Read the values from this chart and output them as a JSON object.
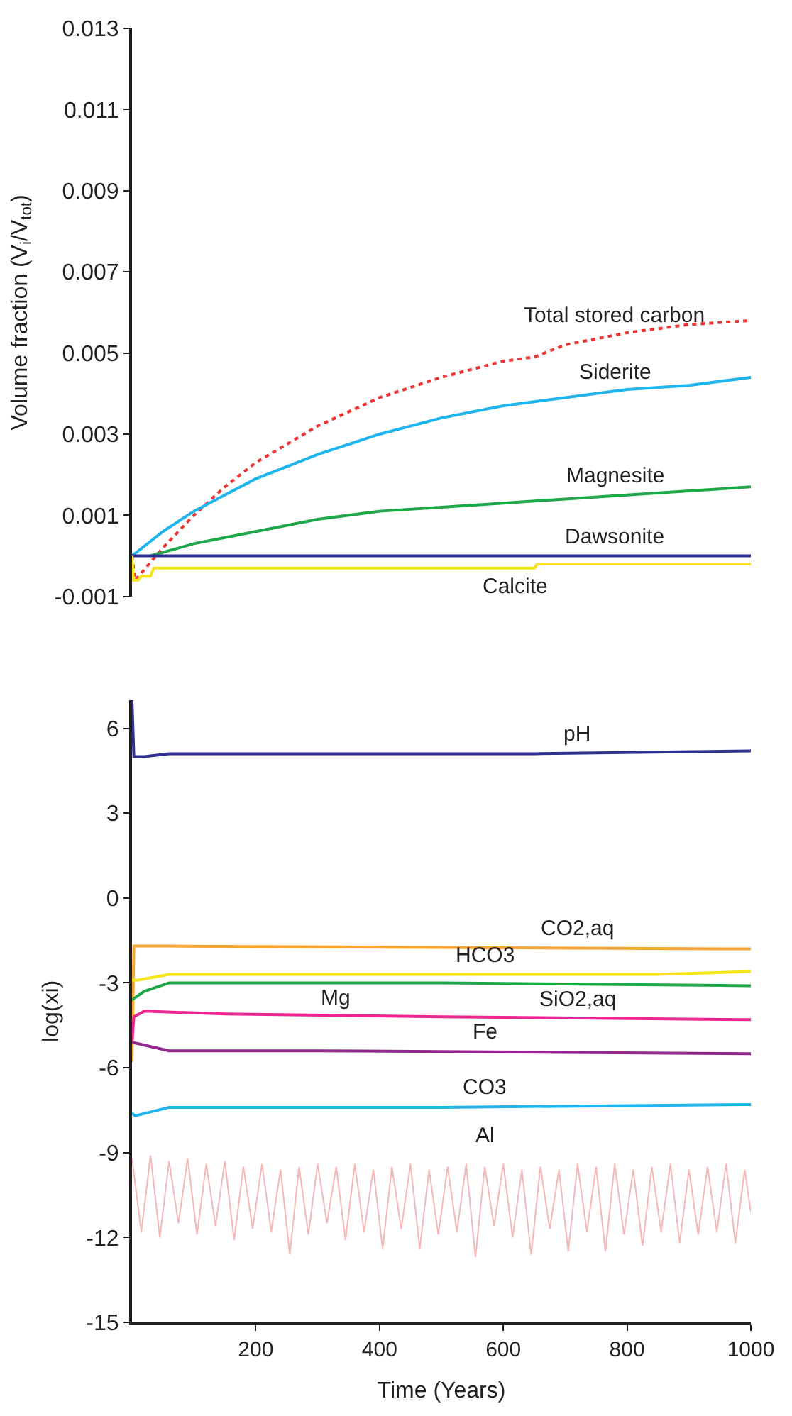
{
  "chart_data": [
    {
      "type": "line",
      "ylabel": "Volume fraction (V$_{i}$/V$_{tot}$)",
      "xlim": [
        0,
        1000
      ],
      "ylim": [
        -0.001,
        0.013
      ],
      "yticks": [
        -0.001,
        0.001,
        0.003,
        0.005,
        0.007,
        0.009,
        0.011,
        0.013
      ],
      "tick_labels": "y",
      "series": [
        {
          "name": "Total stored carbon",
          "color": "#ee3333",
          "line_style": "dotted",
          "x": [
            0,
            5,
            50,
            100,
            150,
            200,
            300,
            400,
            500,
            600,
            650,
            700,
            800,
            900,
            1000
          ],
          "values": [
            0,
            -0.0006,
            0.0002,
            0.001,
            0.0017,
            0.0023,
            0.0032,
            0.0039,
            0.0044,
            0.0048,
            0.0049,
            0.0052,
            0.0055,
            0.0057,
            0.0058
          ]
        },
        {
          "name": "Siderite",
          "color": "#1eb4ee",
          "x": [
            0,
            50,
            100,
            150,
            200,
            300,
            400,
            500,
            600,
            700,
            800,
            900,
            1000
          ],
          "values": [
            0,
            0.0006,
            0.0011,
            0.0015,
            0.0019,
            0.0025,
            0.003,
            0.0034,
            0.0037,
            0.0039,
            0.0041,
            0.0042,
            0.0044
          ]
        },
        {
          "name": "Magnesite",
          "color": "#1fa84a",
          "x": [
            30,
            100,
            200,
            300,
            400,
            500,
            600,
            700,
            800,
            900,
            1000
          ],
          "values": [
            0,
            0.0003,
            0.0006,
            0.0009,
            0.0011,
            0.0012,
            0.0013,
            0.0014,
            0.0015,
            0.0016,
            0.0017
          ]
        },
        {
          "name": "Dawsonite",
          "color": "#2e3192",
          "x": [
            0,
            1000
          ],
          "values": [
            0,
            0
          ]
        },
        {
          "name": "Calcite",
          "color": "#f5e61a",
          "x": [
            0,
            2,
            10,
            15,
            30,
            35,
            650,
            655,
            1000
          ],
          "values": [
            0,
            -0.0006,
            -0.0006,
            -0.0005,
            -0.0005,
            -0.0003,
            -0.0003,
            -0.0002,
            -0.0002
          ]
        }
      ]
    },
    {
      "type": "line",
      "ylabel": "log(xi)",
      "xlabel": "Time (Years)",
      "xlim": [
        0,
        1000
      ],
      "ylim": [
        -15,
        7
      ],
      "xticks": [
        200,
        400,
        600,
        800,
        1000
      ],
      "yticks": [
        6,
        3,
        0,
        -3,
        -6,
        -9,
        -12,
        -15
      ],
      "series": [
        {
          "name": "pH",
          "color": "#2e3192",
          "x": [
            0,
            3,
            20,
            60,
            650,
            1000
          ],
          "values": [
            7,
            5,
            5,
            5.1,
            5.1,
            5.2
          ]
        },
        {
          "name": "CO2,aq",
          "color": "#f7a531",
          "x": [
            0,
            3,
            60,
            1000
          ],
          "values": [
            -5.8,
            -1.7,
            -1.7,
            -1.8
          ]
        },
        {
          "name": "HCO3",
          "color": "#f5e61a",
          "x": [
            0,
            10,
            60,
            850,
            1000
          ],
          "values": [
            -2.9,
            -2.9,
            -2.7,
            -2.7,
            -2.6
          ]
        },
        {
          "name": "Mg",
          "color": "#1fa84a",
          "x": [
            0,
            20,
            60,
            500,
            1000
          ],
          "values": [
            -3.6,
            -3.3,
            -3.0,
            -3.0,
            -3.1
          ]
        },
        {
          "name": "SiO2,aq",
          "color": "#ec2590",
          "x": [
            0,
            3,
            20,
            150,
            500,
            1000
          ],
          "values": [
            -5.1,
            -4.2,
            -4.0,
            -4.1,
            -4.2,
            -4.3
          ]
        },
        {
          "name": "Fe",
          "color": "#92278f",
          "x": [
            0,
            20,
            60,
            300,
            1000
          ],
          "values": [
            -5.1,
            -5.2,
            -5.4,
            -5.4,
            -5.5
          ]
        },
        {
          "name": "CO3",
          "color": "#1eb4ee",
          "x": [
            0,
            5,
            60,
            500,
            1000
          ],
          "values": [
            -7.6,
            -7.7,
            -7.4,
            -7.4,
            -7.3
          ]
        },
        {
          "name": "Al",
          "color": "#f4b8b8",
          "x": [
            0,
            15,
            30,
            45,
            60,
            75,
            90,
            105,
            120,
            135,
            150,
            165,
            180,
            195,
            210,
            225,
            240,
            255,
            270,
            285,
            300,
            315,
            330,
            345,
            360,
            375,
            390,
            405,
            420,
            435,
            450,
            465,
            480,
            495,
            510,
            525,
            540,
            555,
            570,
            585,
            600,
            615,
            630,
            645,
            660,
            675,
            690,
            705,
            720,
            735,
            750,
            765,
            780,
            795,
            810,
            825,
            840,
            855,
            870,
            885,
            900,
            915,
            930,
            945,
            960,
            975,
            990,
            1000
          ],
          "values": [
            -9.2,
            -11.8,
            -9.1,
            -12,
            -9.3,
            -11.5,
            -9.2,
            -11.9,
            -9.4,
            -11.6,
            -9.3,
            -12.1,
            -9.5,
            -11.7,
            -9.4,
            -11.8,
            -9.6,
            -12.6,
            -9.5,
            -11.9,
            -9.4,
            -11.5,
            -9.5,
            -12.1,
            -9.4,
            -11.8,
            -9.6,
            -12.4,
            -9.5,
            -11.7,
            -9.4,
            -12.4,
            -9.6,
            -11.9,
            -9.5,
            -11.8,
            -9.4,
            -12.7,
            -9.5,
            -11.6,
            -9.4,
            -12.0,
            -9.6,
            -12.6,
            -9.5,
            -11.7,
            -9.6,
            -12.5,
            -9.4,
            -11.8,
            -9.5,
            -12.5,
            -9.4,
            -11.9,
            -9.6,
            -12.3,
            -9.5,
            -11.8,
            -9.4,
            -12.2,
            -9.6,
            -11.9,
            -9.5,
            -11.8,
            -9.4,
            -12.2,
            -9.6,
            -11.1
          ]
        }
      ]
    }
  ]
}
